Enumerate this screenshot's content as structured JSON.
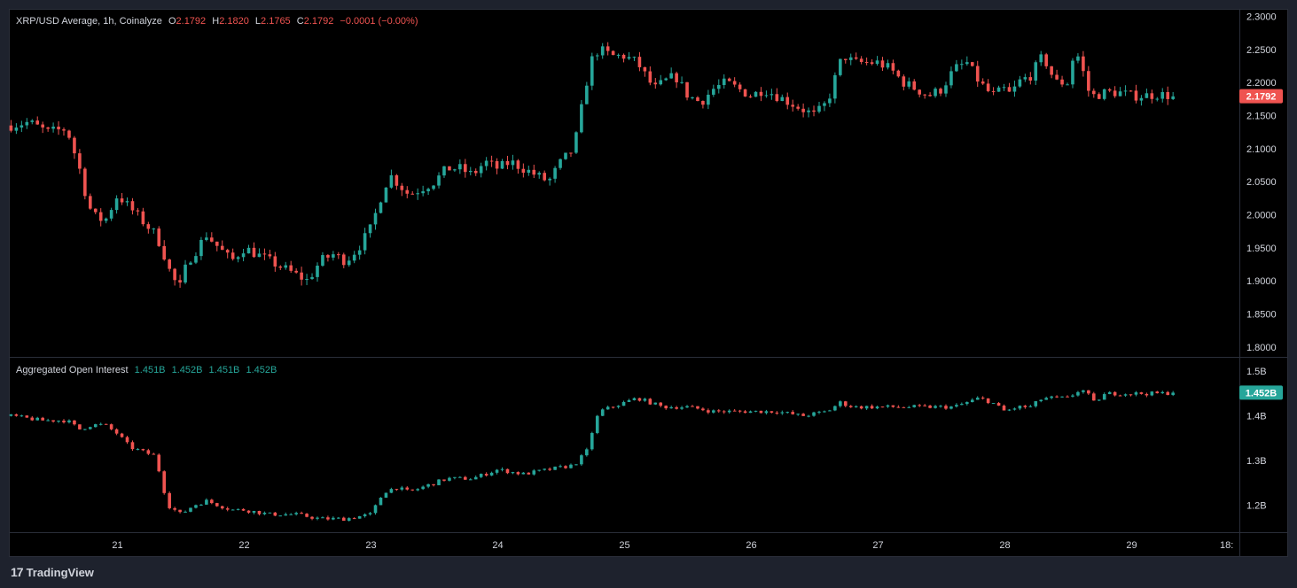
{
  "legend": {
    "symbol": "XRP/USD Average, 1h, Coinalyze",
    "o_label": "O",
    "o_value": "2.1792",
    "h_label": "H",
    "h_value": "2.1820",
    "l_label": "L",
    "l_value": "2.1765",
    "c_label": "C",
    "c_value": "2.1792",
    "change": "−0.0001 (−0.00%)"
  },
  "indicator": {
    "name": "Aggregated Open Interest",
    "values": [
      "1.451B",
      "1.452B",
      "1.451B",
      "1.452B"
    ]
  },
  "branding": {
    "logo_glyph": "17",
    "name": "TradingView"
  },
  "colors": {
    "up": "#26a69a",
    "down": "#ef5350",
    "background": "#000000",
    "frame": "#1e222d"
  },
  "chart_data": [
    {
      "type": "candlestick",
      "title": "XRP/USD Average, 1h, Coinalyze",
      "interval": "1h",
      "y_ticks": [
        "2.3000",
        "2.2500",
        "2.2000",
        "2.1500",
        "2.1000",
        "2.0500",
        "2.0000",
        "1.9500",
        "1.9000",
        "1.8500",
        "1.8000"
      ],
      "ylim": [
        1.785,
        2.31
      ],
      "last_price_label": "2.1792",
      "x_ticks": [
        "21",
        "22",
        "23",
        "24",
        "25",
        "26",
        "27",
        "28",
        "29",
        "18:"
      ],
      "x_tick_positions_days": [
        21,
        22,
        23,
        24,
        25,
        26,
        27,
        28,
        29,
        29.75
      ],
      "xlim_days": [
        20.15,
        29.85
      ],
      "path_days": [
        20.16,
        20.3,
        20.45,
        20.6,
        20.7,
        20.75,
        20.8,
        20.9,
        21.0,
        21.1,
        21.2,
        21.3,
        21.35,
        21.4,
        21.45,
        21.5,
        21.55,
        21.6,
        21.7,
        21.8,
        21.9,
        22.0,
        22.1,
        22.2,
        22.3,
        22.4,
        22.5,
        22.6,
        22.7,
        22.8,
        22.9,
        23.0,
        23.1,
        23.15,
        23.2,
        23.3,
        23.4,
        23.5,
        23.6,
        23.7,
        23.8,
        23.9,
        24.0,
        24.1,
        24.2,
        24.3,
        24.4,
        24.5,
        24.6,
        24.65,
        24.7,
        24.75,
        24.8,
        24.9,
        25.0,
        25.1,
        25.2,
        25.25,
        25.3,
        25.4,
        25.5,
        25.6,
        25.7,
        25.8,
        25.9,
        26.0,
        26.1,
        26.2,
        26.3,
        26.4,
        26.5,
        26.6,
        26.7,
        26.75,
        26.8,
        27.0,
        27.1,
        27.2,
        27.3,
        27.4,
        27.5,
        27.6,
        27.7,
        27.8,
        27.9,
        28.0,
        28.05,
        28.1,
        28.2,
        28.3,
        28.4,
        28.5,
        28.55,
        28.6,
        28.65,
        28.7,
        28.8,
        28.9,
        29.0,
        29.1,
        29.2,
        29.3,
        29.35
      ],
      "path_close": [
        2.135,
        2.14,
        2.125,
        2.13,
        2.07,
        2.03,
        2.0,
        1.99,
        2.03,
        2.01,
        1.99,
        1.97,
        1.95,
        1.92,
        1.9,
        1.89,
        1.93,
        1.94,
        1.97,
        1.95,
        1.93,
        1.95,
        1.94,
        1.93,
        1.92,
        1.91,
        1.9,
        1.93,
        1.94,
        1.93,
        1.95,
        1.98,
        2.04,
        2.06,
        2.05,
        2.03,
        2.04,
        2.05,
        2.07,
        2.07,
        2.06,
        2.08,
        2.07,
        2.08,
        2.07,
        2.06,
        2.05,
        2.08,
        2.1,
        2.15,
        2.2,
        2.24,
        2.25,
        2.24,
        2.24,
        2.23,
        2.2,
        2.19,
        2.2,
        2.21,
        2.18,
        2.17,
        2.19,
        2.2,
        2.19,
        2.18,
        2.19,
        2.18,
        2.17,
        2.16,
        2.15,
        2.17,
        2.23,
        2.24,
        2.23,
        2.23,
        2.22,
        2.2,
        2.19,
        2.18,
        2.19,
        2.22,
        2.23,
        2.2,
        2.18,
        2.19,
        2.18,
        2.2,
        2.21,
        2.24,
        2.2,
        2.2,
        2.25,
        2.23,
        2.19,
        2.18,
        2.185,
        2.185,
        2.18,
        2.18,
        2.182,
        2.18,
        2.179
      ]
    },
    {
      "type": "candlestick",
      "title": "Aggregated Open Interest",
      "y_ticks": [
        "1.5B",
        "1.4B",
        "1.3B",
        "1.2B"
      ],
      "ylim": [
        1.14,
        1.53
      ],
      "last_value_label": "1.452B",
      "path_days": [
        20.16,
        20.4,
        20.6,
        20.7,
        20.8,
        20.9,
        21.0,
        21.1,
        21.2,
        21.3,
        21.35,
        21.4,
        21.5,
        21.6,
        21.7,
        21.8,
        21.9,
        22.0,
        22.2,
        22.4,
        22.6,
        22.8,
        23.0,
        23.1,
        23.2,
        23.3,
        23.4,
        23.5,
        23.6,
        23.7,
        23.8,
        23.9,
        24.0,
        24.2,
        24.4,
        24.6,
        24.7,
        24.75,
        24.8,
        24.9,
        25.0,
        25.1,
        25.2,
        25.3,
        25.5,
        25.7,
        25.8,
        26.0,
        26.2,
        26.4,
        26.6,
        26.7,
        26.8,
        27.0,
        27.2,
        27.4,
        27.6,
        27.7,
        27.8,
        27.9,
        28.0,
        28.1,
        28.2,
        28.3,
        28.4,
        28.5,
        28.6,
        28.65,
        28.7,
        28.8,
        29.0,
        29.2,
        29.35
      ],
      "path_close": [
        1.4,
        1.39,
        1.39,
        1.37,
        1.38,
        1.38,
        1.36,
        1.33,
        1.32,
        1.31,
        1.25,
        1.2,
        1.18,
        1.2,
        1.21,
        1.2,
        1.19,
        1.19,
        1.18,
        1.18,
        1.17,
        1.17,
        1.18,
        1.23,
        1.24,
        1.23,
        1.24,
        1.25,
        1.26,
        1.26,
        1.26,
        1.27,
        1.28,
        1.27,
        1.28,
        1.29,
        1.32,
        1.37,
        1.41,
        1.42,
        1.43,
        1.44,
        1.43,
        1.42,
        1.42,
        1.41,
        1.41,
        1.41,
        1.41,
        1.4,
        1.41,
        1.43,
        1.42,
        1.42,
        1.42,
        1.42,
        1.42,
        1.43,
        1.44,
        1.43,
        1.41,
        1.42,
        1.42,
        1.44,
        1.44,
        1.44,
        1.46,
        1.45,
        1.43,
        1.45,
        1.45,
        1.45,
        1.452
      ]
    }
  ]
}
